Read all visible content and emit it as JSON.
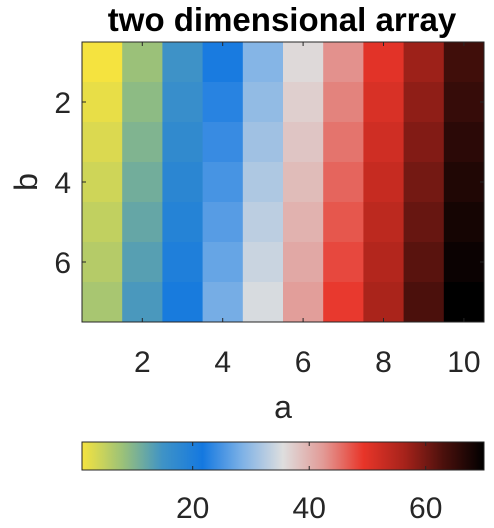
{
  "chart_data": {
    "type": "heatmap",
    "title": "two dimensional array",
    "xlabel": "a",
    "ylabel": "b",
    "x": [
      1,
      2,
      3,
      4,
      5,
      6,
      7,
      8,
      9,
      10
    ],
    "y": [
      1,
      2,
      3,
      4,
      5,
      6,
      7
    ],
    "xticks": [
      "2",
      "4",
      "6",
      "8",
      "10"
    ],
    "yticks": [
      "2",
      "4",
      "6"
    ],
    "xlim": [
      0.5,
      10.5
    ],
    "ylim": [
      0.5,
      7.5
    ],
    "y_direction": "reverse",
    "values": [
      [
        1,
        8,
        15,
        22,
        29,
        36,
        43,
        50,
        57,
        64
      ],
      [
        2,
        9,
        16,
        23,
        30,
        37,
        44,
        51,
        58,
        65
      ],
      [
        3,
        10,
        17,
        24,
        31,
        38,
        45,
        52,
        59,
        66
      ],
      [
        4,
        11,
        18,
        25,
        32,
        39,
        46,
        53,
        60,
        67
      ],
      [
        5,
        12,
        19,
        26,
        33,
        40,
        47,
        54,
        61,
        68
      ],
      [
        6,
        13,
        20,
        27,
        34,
        41,
        48,
        55,
        62,
        69
      ],
      [
        7,
        14,
        21,
        28,
        35,
        42,
        49,
        56,
        63,
        70
      ]
    ],
    "colorbar": {
      "orientation": "horizontal",
      "location": "bottom",
      "limits": [
        1,
        70
      ],
      "ticks": [
        "20",
        "40",
        "60"
      ],
      "colormap": [
        "#f5e33f",
        "#9cc278",
        "#3f93c6",
        "#1478e0",
        "#7fb2e6",
        "#dedede",
        "#e29a96",
        "#e83529",
        "#a8231b",
        "#4a100c",
        "#000000"
      ]
    },
    "grid": false,
    "legend": "none"
  }
}
